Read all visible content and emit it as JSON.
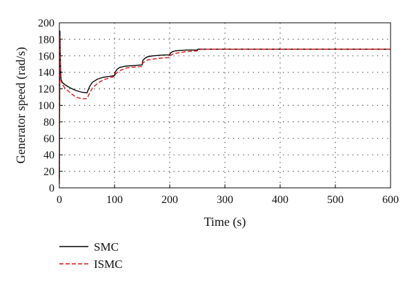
{
  "chart_data": {
    "type": "line",
    "title": "",
    "xlabel": "Time (s)",
    "ylabel": "Generator speed (rad/s)",
    "xlim": [
      0,
      600
    ],
    "ylim": [
      0,
      200
    ],
    "xticks": [
      0,
      100,
      200,
      300,
      400,
      500,
      600
    ],
    "yticks": [
      0,
      20,
      40,
      60,
      80,
      100,
      120,
      140,
      160,
      180,
      200
    ],
    "grid": "dotted",
    "legend_position": "bottom-left",
    "series": [
      {
        "name": "SMC",
        "color": "#000000",
        "style": "solid",
        "x": [
          0,
          1,
          2,
          3,
          5,
          10,
          20,
          30,
          40,
          50,
          55,
          60,
          70,
          80,
          90,
          100,
          101,
          105,
          110,
          120,
          130,
          140,
          150,
          151,
          155,
          160,
          170,
          180,
          190,
          200,
          201,
          205,
          210,
          220,
          230,
          240,
          250,
          251,
          255,
          260,
          300,
          400,
          500,
          600
        ],
        "y": [
          10,
          190,
          150,
          132,
          128,
          125,
          121,
          118,
          116,
          115,
          123,
          128,
          132,
          134,
          135,
          136,
          140,
          144,
          146,
          147.5,
          148,
          148.5,
          149,
          154,
          157,
          159,
          160,
          160.5,
          161,
          161,
          163,
          165,
          166,
          166.5,
          167,
          167,
          167,
          168,
          168,
          168,
          168,
          168,
          168,
          168
        ]
      },
      {
        "name": "ISMC",
        "color": "#dd1111",
        "style": "dashed",
        "x": [
          0,
          1,
          2,
          3,
          5,
          10,
          20,
          30,
          40,
          50,
          55,
          60,
          70,
          80,
          90,
          100,
          101,
          105,
          110,
          120,
          130,
          140,
          150,
          151,
          155,
          160,
          170,
          180,
          190,
          200,
          201,
          205,
          210,
          220,
          230,
          240,
          250,
          251,
          255,
          260,
          300,
          400,
          500,
          600
        ],
        "y": [
          5,
          185,
          145,
          130,
          126,
          121,
          115,
          110,
          108,
          108,
          115,
          121,
          127,
          131,
          133,
          135,
          137,
          140,
          142,
          145,
          146,
          146.5,
          147,
          151,
          153,
          155,
          156,
          157,
          157.5,
          158,
          160,
          162,
          163,
          164,
          165,
          165.5,
          166,
          167,
          167.5,
          168,
          168,
          168,
          168,
          168
        ]
      }
    ]
  }
}
